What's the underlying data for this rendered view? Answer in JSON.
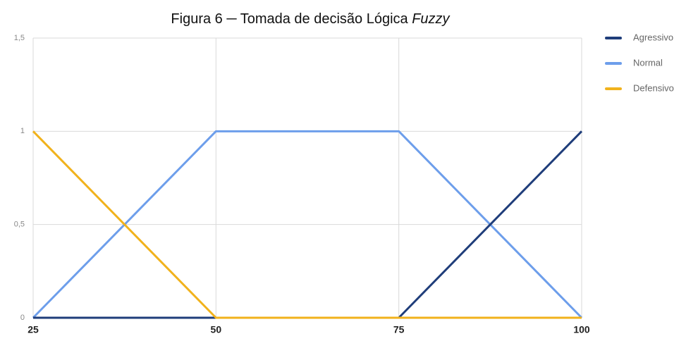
{
  "chart_data": {
    "type": "line",
    "title": [
      "Figura 6 ─ Tomada de decisão Lógica",
      "Fuzzy"
    ],
    "x": [
      25,
      50,
      75,
      100
    ],
    "series": [
      {
        "name": "Agressivo",
        "color": "#1f3d7a",
        "values": [
          0,
          0,
          0,
          1
        ]
      },
      {
        "name": "Normal",
        "color": "#6d9eeb",
        "values": [
          0,
          1,
          1,
          0
        ]
      },
      {
        "name": "Defensivo",
        "color": "#f1b21c",
        "values": [
          1,
          0,
          0,
          0
        ]
      }
    ],
    "xlim": [
      25,
      100
    ],
    "xticks": [
      25,
      50,
      75,
      100
    ],
    "ylim": [
      0,
      1.5
    ],
    "yticks": [
      0,
      {
        "value": 0.5,
        "label": "0,5"
      },
      1,
      {
        "value": 1.5,
        "label": "1,5"
      }
    ],
    "grid": true,
    "legend": "right"
  }
}
